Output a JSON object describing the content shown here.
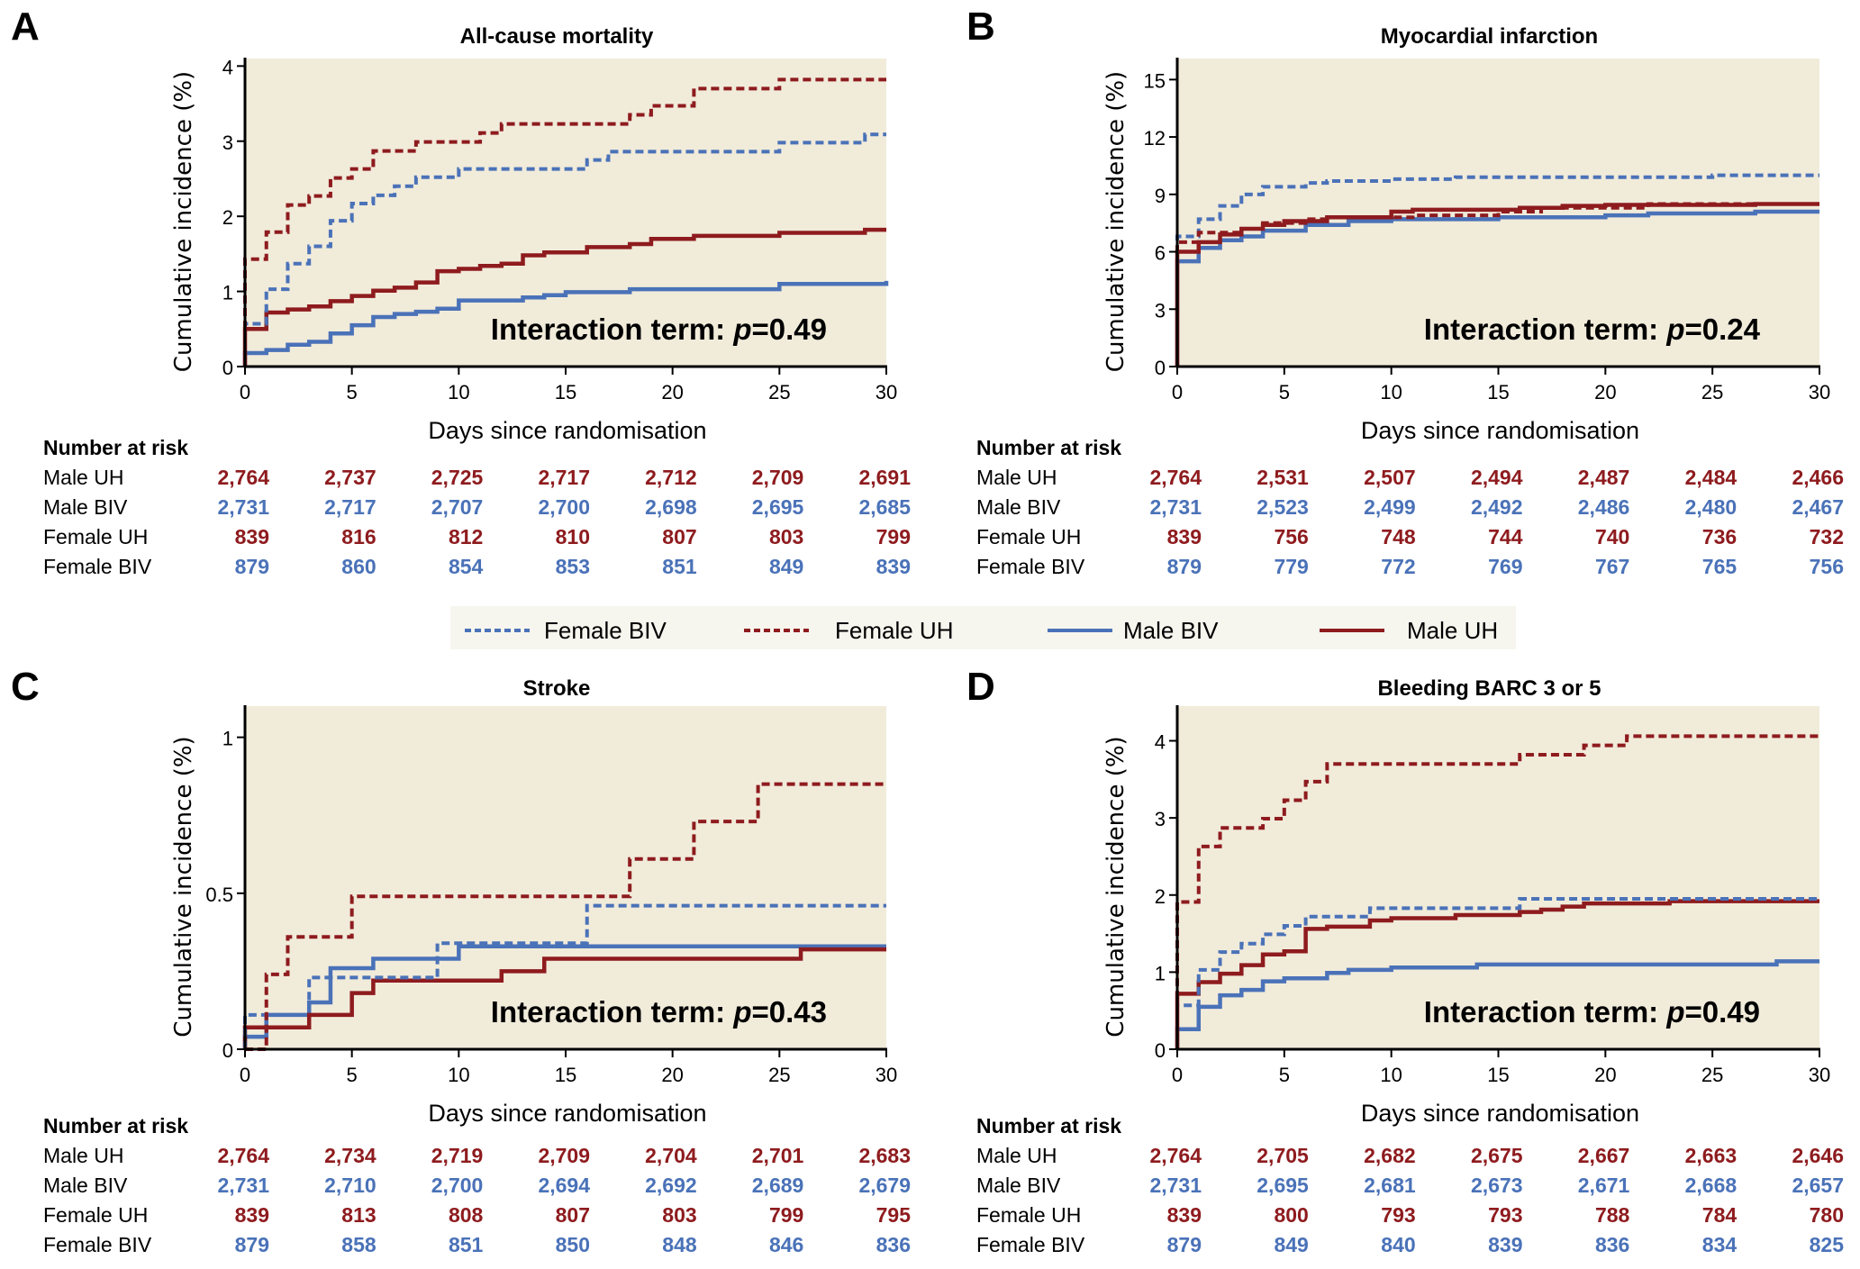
{
  "colors": {
    "male_uh": "#8e1b1e",
    "female_uh": "#8e1b1e",
    "male_biv": "#4a72b8",
    "female_biv": "#4a72b8",
    "plot_bg": "#f1ebda",
    "legend_bg": "#f6f5ee"
  },
  "legend": {
    "items": [
      {
        "key": "female_biv",
        "label": "Female BIV",
        "style": "dashed"
      },
      {
        "key": "female_uh",
        "label": "Female UH",
        "style": "dashed"
      },
      {
        "key": "male_biv",
        "label": "Male BIV",
        "style": "solid"
      },
      {
        "key": "male_uh",
        "label": "Male UH",
        "style": "solid"
      }
    ]
  },
  "risk_table_header": "Number at risk",
  "risk_row_labels": [
    "Male UH",
    "Male BIV",
    "Female UH",
    "Female BIV"
  ],
  "chart_data": [
    {
      "panel": "A",
      "type": "line",
      "step": true,
      "title": "All-cause mortality",
      "xlabel": "Days since randomisation",
      "ylabel": "Cumulative incidence (%)",
      "xlim": [
        0,
        30
      ],
      "ylim": [
        0,
        4.1
      ],
      "xticks": [
        0,
        5,
        10,
        15,
        20,
        25,
        30
      ],
      "yticks": [
        0,
        1,
        2,
        3,
        4
      ],
      "ytick_labels": [
        "0",
        "1",
        "2",
        "3",
        "4"
      ],
      "annotation": {
        "prefix": "Interaction term: ",
        "italic": "p",
        "suffix": "=0.49"
      },
      "series": [
        {
          "key": "female_uh",
          "name": "Female UH",
          "style": "dashed",
          "x": [
            0,
            0,
            1,
            2,
            3,
            4,
            5,
            6,
            8,
            11,
            12,
            18,
            19,
            21,
            25,
            30
          ],
          "y": [
            0,
            1.43,
            1.79,
            2.15,
            2.27,
            2.51,
            2.63,
            2.87,
            2.99,
            3.11,
            3.23,
            3.35,
            3.47,
            3.7,
            3.82,
            3.82
          ]
        },
        {
          "key": "female_biv",
          "name": "Female BIV",
          "style": "dashed",
          "x": [
            0,
            0,
            1,
            2,
            3,
            4,
            5,
            6,
            7,
            8,
            10,
            16,
            17,
            25,
            29,
            30
          ],
          "y": [
            0,
            0.57,
            1.03,
            1.37,
            1.6,
            1.94,
            2.17,
            2.28,
            2.4,
            2.52,
            2.63,
            2.75,
            2.86,
            2.98,
            3.09,
            3.09
          ]
        },
        {
          "key": "male_uh",
          "name": "Male UH",
          "style": "solid",
          "x": [
            0,
            0,
            1,
            2,
            3,
            4,
            5,
            6,
            7,
            8,
            9,
            10,
            11,
            12,
            13,
            14,
            16,
            18,
            19,
            21,
            25,
            29,
            30
          ],
          "y": [
            0,
            0.5,
            0.72,
            0.76,
            0.8,
            0.87,
            0.94,
            1.01,
            1.05,
            1.12,
            1.27,
            1.3,
            1.34,
            1.37,
            1.48,
            1.52,
            1.59,
            1.63,
            1.7,
            1.74,
            1.78,
            1.82,
            1.82
          ]
        },
        {
          "key": "male_biv",
          "name": "Male BIV",
          "style": "solid",
          "x": [
            0,
            0,
            1,
            2,
            3,
            4,
            5,
            6,
            7,
            8,
            9,
            10,
            13,
            14,
            15,
            18,
            25,
            30
          ],
          "y": [
            0,
            0.18,
            0.22,
            0.29,
            0.33,
            0.44,
            0.55,
            0.66,
            0.7,
            0.73,
            0.77,
            0.88,
            0.92,
            0.95,
            0.99,
            1.03,
            1.1,
            1.14
          ]
        }
      ],
      "risk_table": {
        "times": [
          0,
          5,
          10,
          15,
          20,
          25,
          30
        ],
        "rows": {
          "male_uh": [
            "2,764",
            "2,737",
            "2,725",
            "2,717",
            "2,712",
            "2,709",
            "2,691"
          ],
          "male_biv": [
            "2,731",
            "2,717",
            "2,707",
            "2,700",
            "2,698",
            "2,695",
            "2,685"
          ],
          "female_uh": [
            "839",
            "816",
            "812",
            "810",
            "807",
            "803",
            "799"
          ],
          "female_biv": [
            "879",
            "860",
            "854",
            "853",
            "851",
            "849",
            "839"
          ]
        }
      }
    },
    {
      "panel": "B",
      "type": "line",
      "step": true,
      "title": "Myocardial infarction",
      "xlabel": "Days since randomisation",
      "ylabel": "Cumulative incidence (%)",
      "xlim": [
        0,
        30
      ],
      "ylim": [
        0,
        16.1
      ],
      "xticks": [
        0,
        5,
        10,
        15,
        20,
        25,
        30
      ],
      "yticks": [
        0,
        3,
        6,
        9,
        12,
        15
      ],
      "ytick_labels": [
        "0",
        "3",
        "6",
        "9",
        "12",
        "15"
      ],
      "annotation": {
        "prefix": "Interaction term: ",
        "italic": "p",
        "suffix": "=0.24"
      },
      "series": [
        {
          "key": "female_biv",
          "name": "Female BIV",
          "style": "dashed",
          "x": [
            0,
            0,
            1,
            2,
            3,
            4,
            6,
            7,
            10,
            13,
            25,
            30
          ],
          "y": [
            0,
            6.8,
            7.7,
            8.4,
            9.0,
            9.4,
            9.6,
            9.7,
            9.8,
            9.9,
            10.0,
            10.0
          ]
        },
        {
          "key": "female_uh",
          "name": "Female UH",
          "style": "dashed",
          "x": [
            0,
            0,
            1,
            3,
            4,
            6,
            7,
            11,
            15,
            17,
            22,
            30
          ],
          "y": [
            0,
            6.5,
            7.0,
            7.2,
            7.5,
            7.7,
            7.8,
            7.9,
            8.1,
            8.3,
            8.5,
            8.5
          ]
        },
        {
          "key": "male_uh",
          "name": "Male UH",
          "style": "solid",
          "x": [
            0,
            0,
            1,
            2,
            3,
            4,
            5,
            7,
            10,
            11,
            16,
            18,
            20,
            27,
            30
          ],
          "y": [
            0,
            6.0,
            6.5,
            6.9,
            7.2,
            7.4,
            7.6,
            7.8,
            8.1,
            8.2,
            8.3,
            8.4,
            8.45,
            8.5,
            8.5
          ]
        },
        {
          "key": "male_biv",
          "name": "Male BIV",
          "style": "solid",
          "x": [
            0,
            0,
            1,
            2,
            3,
            4,
            6,
            8,
            10,
            15,
            20,
            22,
            27,
            30
          ],
          "y": [
            0,
            5.5,
            6.2,
            6.6,
            6.8,
            7.1,
            7.4,
            7.6,
            7.7,
            7.8,
            7.9,
            8.0,
            8.1,
            8.1
          ]
        }
      ],
      "risk_table": {
        "times": [
          0,
          5,
          10,
          15,
          20,
          25,
          30
        ],
        "rows": {
          "male_uh": [
            "2,764",
            "2,531",
            "2,507",
            "2,494",
            "2,487",
            "2,484",
            "2,466"
          ],
          "male_biv": [
            "2,731",
            "2,523",
            "2,499",
            "2,492",
            "2,486",
            "2,480",
            "2,467"
          ],
          "female_uh": [
            "839",
            "756",
            "748",
            "744",
            "740",
            "736",
            "732"
          ],
          "female_biv": [
            "879",
            "779",
            "772",
            "769",
            "767",
            "765",
            "756"
          ]
        }
      }
    },
    {
      "panel": "C",
      "type": "line",
      "step": true,
      "title": "Stroke",
      "xlabel": "Days since randomisation",
      "ylabel": "Cumulative incidence (%)",
      "xlim": [
        0,
        30
      ],
      "ylim": [
        0,
        1.1
      ],
      "xticks": [
        0,
        5,
        10,
        15,
        20,
        25,
        30
      ],
      "yticks": [
        0,
        0.5,
        1
      ],
      "ytick_labels": [
        "0",
        "0.5",
        "1"
      ],
      "annotation": {
        "prefix": "Interaction term: ",
        "italic": "p",
        "suffix": "=0.43"
      },
      "series": [
        {
          "key": "female_uh",
          "name": "Female UH",
          "style": "dashed",
          "x": [
            0,
            1,
            2,
            5,
            18,
            21,
            24,
            30
          ],
          "y": [
            0,
            0.24,
            0.36,
            0.49,
            0.61,
            0.73,
            0.85,
            0.85
          ]
        },
        {
          "key": "female_biv",
          "name": "Female BIV",
          "style": "dashed",
          "x": [
            0,
            0,
            3,
            9,
            16,
            30
          ],
          "y": [
            0,
            0.11,
            0.23,
            0.34,
            0.46,
            0.46
          ]
        },
        {
          "key": "male_biv",
          "name": "Male BIV",
          "style": "solid",
          "x": [
            0,
            0,
            1,
            3,
            4,
            6,
            10,
            30
          ],
          "y": [
            0,
            0.04,
            0.11,
            0.15,
            0.26,
            0.29,
            0.33,
            0.33
          ]
        },
        {
          "key": "male_uh",
          "name": "Male UH",
          "style": "solid",
          "x": [
            0,
            0,
            3,
            5,
            6,
            12,
            14,
            26,
            30
          ],
          "y": [
            0,
            0.07,
            0.11,
            0.18,
            0.22,
            0.25,
            0.29,
            0.32,
            0.32
          ]
        }
      ],
      "risk_table": {
        "times": [
          0,
          5,
          10,
          15,
          20,
          25,
          30
        ],
        "rows": {
          "male_uh": [
            "2,764",
            "2,734",
            "2,719",
            "2,709",
            "2,704",
            "2,701",
            "2,683"
          ],
          "male_biv": [
            "2,731",
            "2,710",
            "2,700",
            "2,694",
            "2,692",
            "2,689",
            "2,679"
          ],
          "female_uh": [
            "839",
            "813",
            "808",
            "807",
            "803",
            "799",
            "795"
          ],
          "female_biv": [
            "879",
            "858",
            "851",
            "850",
            "848",
            "846",
            "836"
          ]
        }
      }
    },
    {
      "panel": "D",
      "type": "line",
      "step": true,
      "title": "Bleeding BARC 3 or 5",
      "xlabel": "Days since randomisation",
      "ylabel": "Cumulative incidence (%)",
      "xlim": [
        0,
        30
      ],
      "ylim": [
        0,
        4.45
      ],
      "xticks": [
        0,
        5,
        10,
        15,
        20,
        25,
        30
      ],
      "yticks": [
        0,
        1,
        2,
        3,
        4
      ],
      "ytick_labels": [
        "0",
        "1",
        "2",
        "3",
        "4"
      ],
      "annotation": {
        "prefix": "Interaction term: ",
        "italic": "p",
        "suffix": "=0.49"
      },
      "series": [
        {
          "key": "female_uh",
          "name": "Female UH",
          "style": "dashed",
          "x": [
            0,
            0,
            1,
            2,
            4,
            5,
            6,
            7,
            16,
            19,
            21,
            30
          ],
          "y": [
            0,
            1.91,
            2.63,
            2.87,
            2.99,
            3.23,
            3.47,
            3.7,
            3.82,
            3.94,
            4.06,
            4.06
          ]
        },
        {
          "key": "female_biv",
          "name": "Female BIV",
          "style": "dashed",
          "x": [
            0,
            0,
            1,
            2,
            3,
            4,
            5,
            6,
            9,
            16,
            30
          ],
          "y": [
            0,
            0.57,
            1.03,
            1.26,
            1.37,
            1.49,
            1.6,
            1.72,
            1.83,
            1.95,
            1.95
          ]
        },
        {
          "key": "male_uh",
          "name": "Male UH",
          "style": "solid",
          "x": [
            0,
            0,
            1,
            2,
            3,
            4,
            5,
            6,
            7,
            9,
            10,
            13,
            16,
            17,
            18,
            19,
            23,
            30
          ],
          "y": [
            0,
            0.72,
            0.87,
            0.98,
            1.09,
            1.23,
            1.27,
            1.56,
            1.59,
            1.67,
            1.7,
            1.74,
            1.78,
            1.81,
            1.85,
            1.89,
            1.92,
            1.92
          ]
        },
        {
          "key": "male_biv",
          "name": "Male BIV",
          "style": "solid",
          "x": [
            0,
            0,
            1,
            2,
            3,
            4,
            5,
            7,
            8,
            10,
            14,
            28,
            30
          ],
          "y": [
            0,
            0.26,
            0.55,
            0.7,
            0.77,
            0.88,
            0.92,
            0.99,
            1.03,
            1.06,
            1.1,
            1.14,
            1.14
          ]
        }
      ],
      "risk_table": {
        "times": [
          0,
          5,
          10,
          15,
          20,
          25,
          30
        ],
        "rows": {
          "male_uh": [
            "2,764",
            "2,705",
            "2,682",
            "2,675",
            "2,667",
            "2,663",
            "2,646"
          ],
          "male_biv": [
            "2,731",
            "2,695",
            "2,681",
            "2,673",
            "2,671",
            "2,668",
            "2,657"
          ],
          "female_uh": [
            "839",
            "800",
            "793",
            "793",
            "788",
            "784",
            "780"
          ],
          "female_biv": [
            "879",
            "849",
            "840",
            "839",
            "836",
            "834",
            "825"
          ]
        }
      }
    }
  ]
}
